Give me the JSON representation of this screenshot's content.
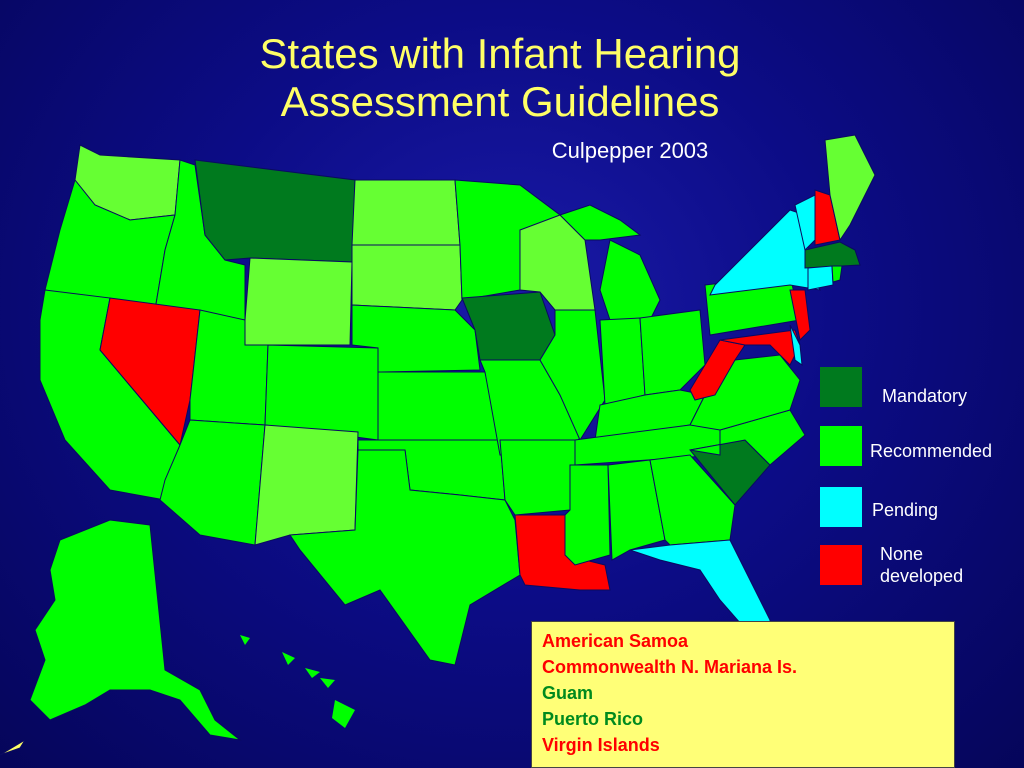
{
  "title_line1": "States with Infant Hearing",
  "title_line2": "Assessment Guidelines",
  "subtitle": "Culpepper 2003",
  "colors": {
    "mandatory": "#007a1e",
    "recommended": "#00ff00",
    "recommended_light": "#66ff33",
    "pending": "#00ffff",
    "none": "#ff0000"
  },
  "legend": [
    {
      "key": "mandatory",
      "label": "Mandatory"
    },
    {
      "key": "recommended",
      "label": "Recommended"
    },
    {
      "key": "pending",
      "label": "Pending"
    },
    {
      "key": "none",
      "label_line1": "None",
      "label_line2": "developed"
    }
  ],
  "territories": [
    {
      "name": "American Samoa",
      "status": "none"
    },
    {
      "name": "Commonwealth N. Mariana Is.",
      "status": "none"
    },
    {
      "name": "Guam",
      "status": "recommended"
    },
    {
      "name": "Puerto Rico",
      "status": "recommended"
    },
    {
      "name": "Virgin Islands",
      "status": "none"
    }
  ],
  "state_status": {
    "mandatory": [
      "Montana",
      "Iowa",
      "South Carolina",
      "Massachusetts"
    ],
    "pending": [
      "New York",
      "Vermont",
      "Florida",
      "Delaware",
      "Connecticut"
    ],
    "none": [
      "Nevada",
      "Louisiana",
      "New Hampshire",
      "New Jersey",
      "Maryland",
      "West Virginia"
    ]
  }
}
